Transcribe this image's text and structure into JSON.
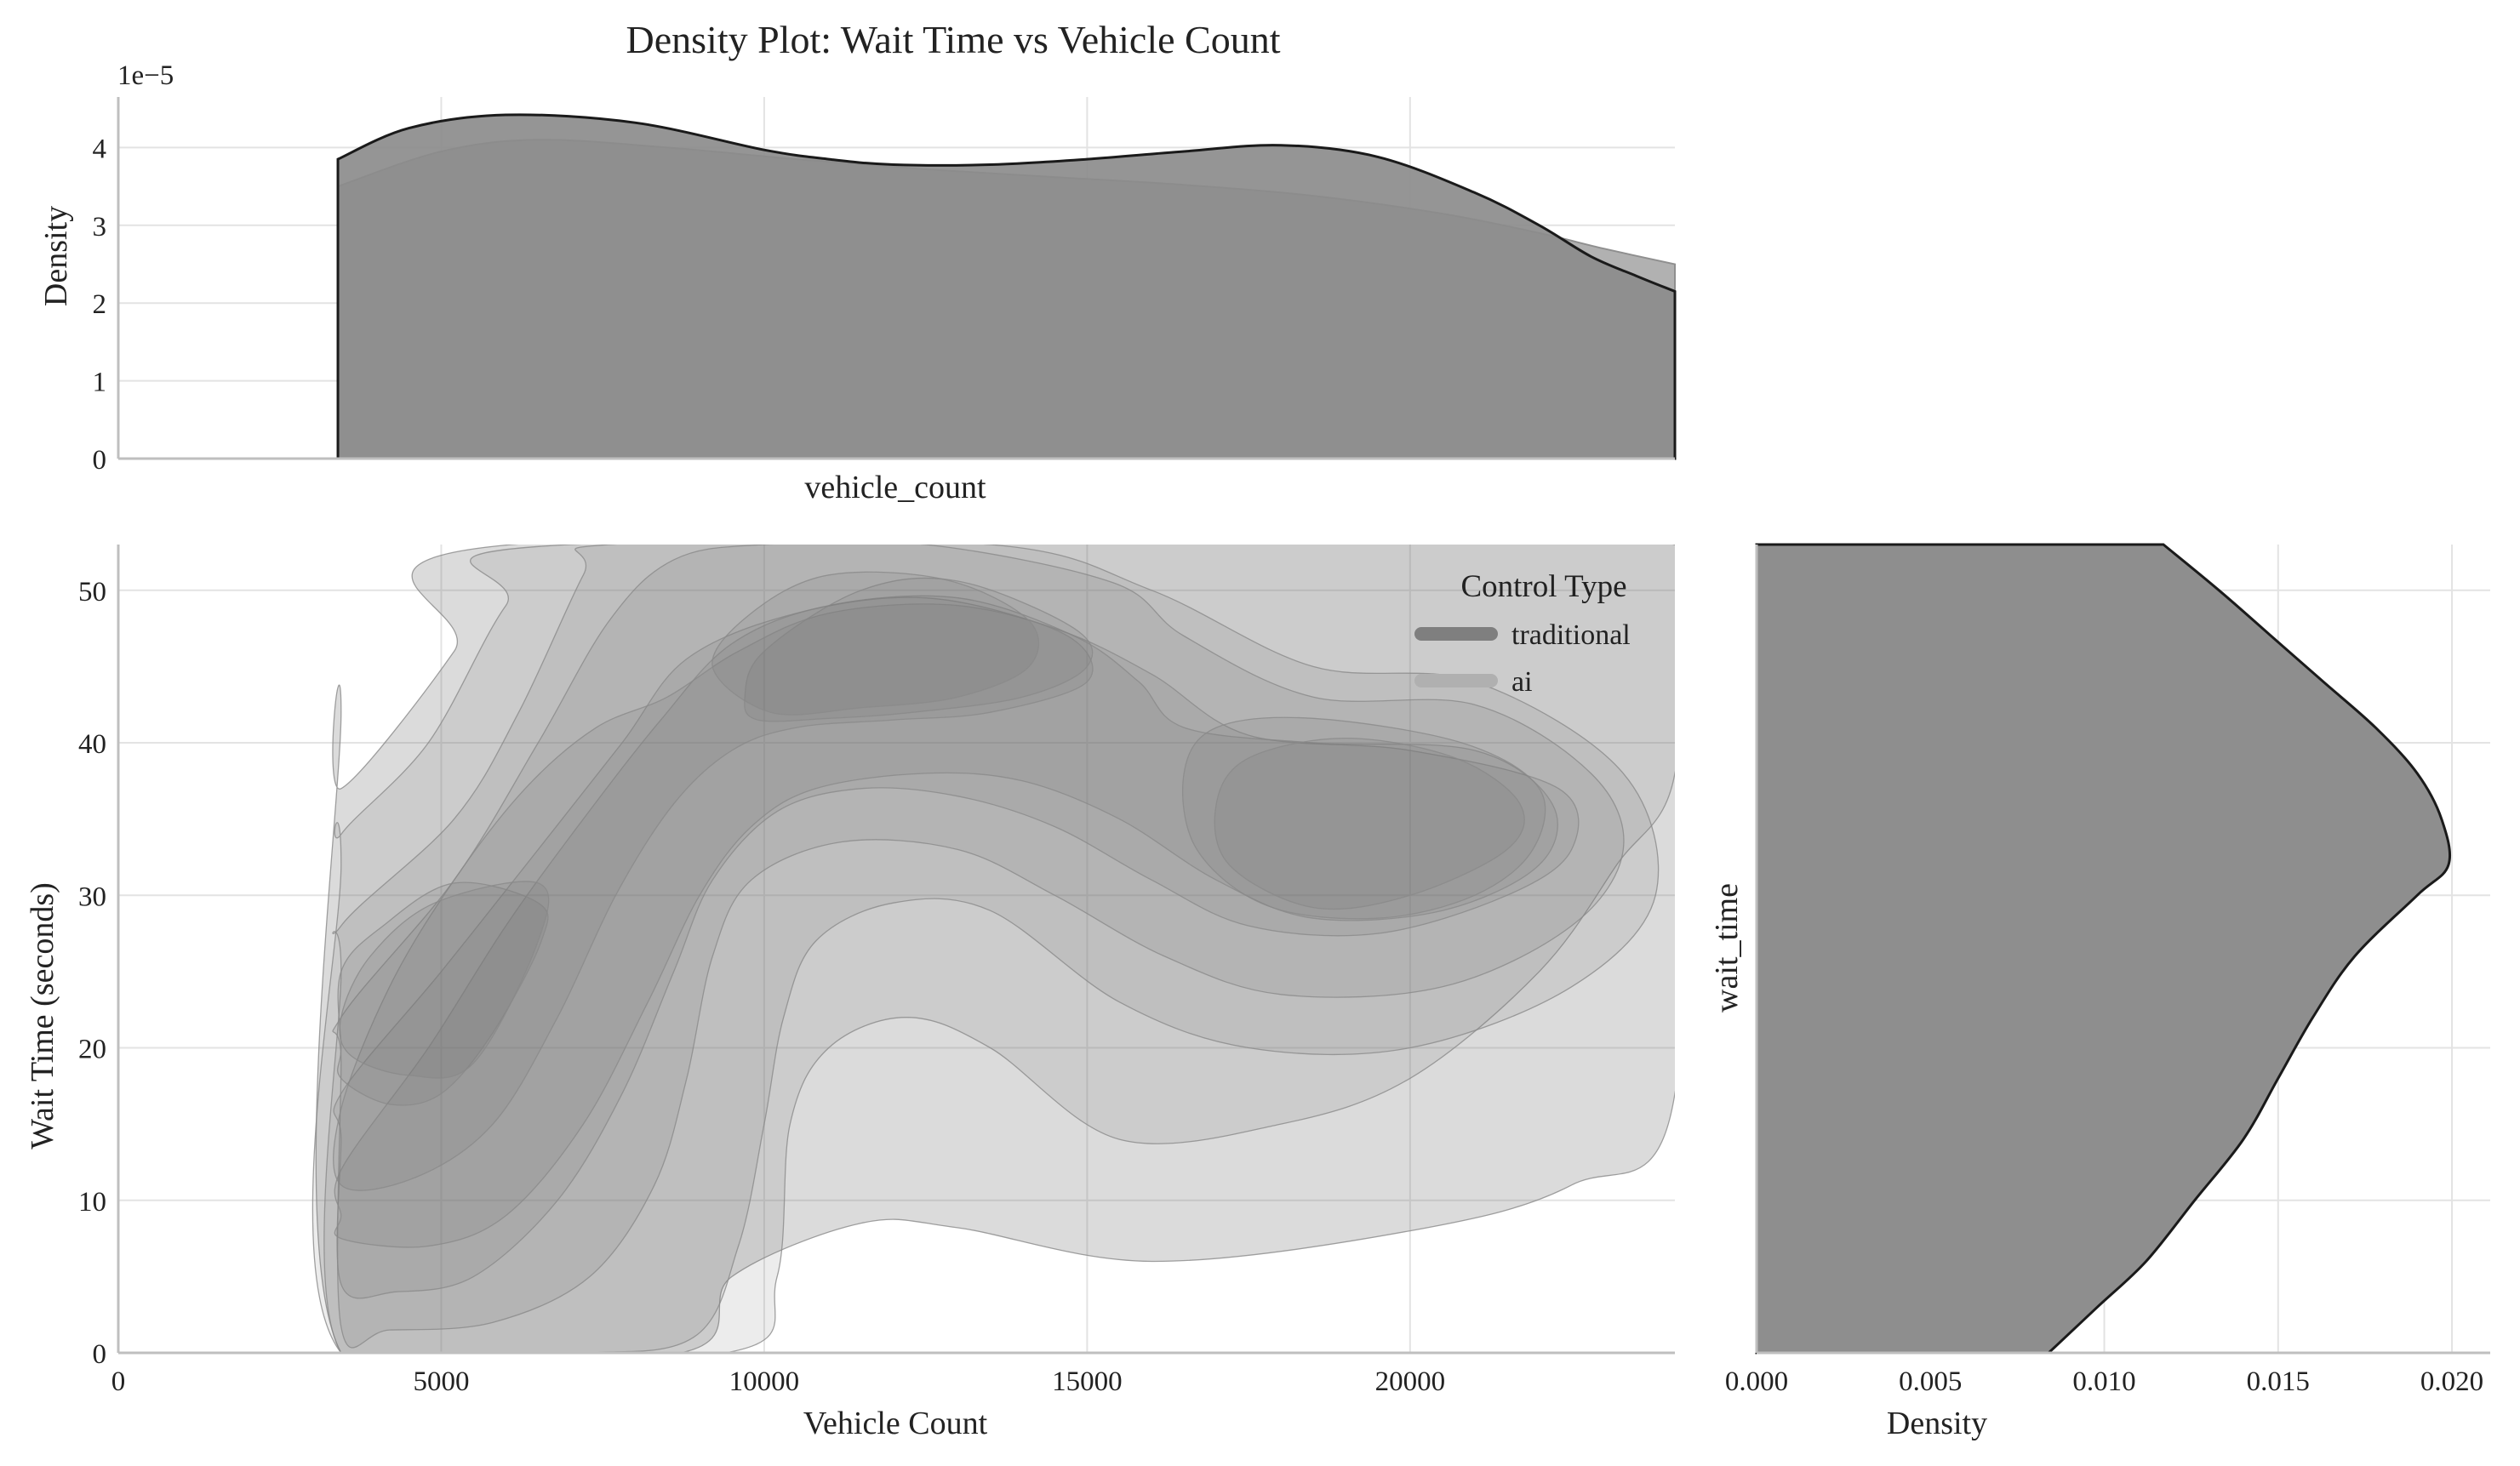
{
  "chart_data": {
    "type": "density",
    "title": "Density Plot: Wait Time vs Vehicle Count",
    "joint": {
      "type": "kde2d",
      "xlabel": "Vehicle Count",
      "ylabel": "Wait Time (seconds)",
      "xlim": [
        0,
        24100
      ],
      "ylim": [
        0,
        53
      ],
      "xticks": [
        0,
        5000,
        10000,
        15000,
        20000
      ],
      "yticks": [
        0,
        10,
        20,
        30,
        40,
        50
      ],
      "contour_levels": [
        [
          [
            3450,
            42
          ],
          [
            3450,
            37
          ],
          [
            5200,
            46
          ],
          [
            6100,
            53
          ],
          [
            24100,
            53
          ],
          [
            24100,
            17
          ],
          [
            22500,
            11
          ],
          [
            20000,
            8
          ],
          [
            16000,
            6
          ],
          [
            13000,
            8.2
          ],
          [
            11500,
            8.5
          ],
          [
            9500,
            5
          ],
          [
            8700,
            0
          ],
          [
            3450,
            0
          ]
        ],
        [
          [
            3450,
            32
          ],
          [
            3450,
            34
          ],
          [
            4800,
            40
          ],
          [
            6000,
            49
          ],
          [
            7000,
            53
          ],
          [
            24100,
            53
          ],
          [
            24100,
            38
          ],
          [
            23200,
            32
          ],
          [
            22000,
            25
          ],
          [
            20000,
            18
          ],
          [
            18000,
            15
          ],
          [
            15500,
            14
          ],
          [
            13500,
            20
          ],
          [
            12200,
            22
          ],
          [
            11000,
            20
          ],
          [
            10400,
            15
          ],
          [
            10200,
            5
          ],
          [
            9400,
            0
          ],
          [
            3450,
            0
          ]
        ],
        [
          [
            3450,
            25
          ],
          [
            3450,
            28
          ],
          [
            5200,
            35
          ],
          [
            6200,
            42
          ],
          [
            7200,
            51
          ],
          [
            7600,
            53
          ],
          [
            13500,
            53
          ],
          [
            16000,
            50
          ],
          [
            18500,
            45
          ],
          [
            21000,
            44
          ],
          [
            23300,
            38
          ],
          [
            23800,
            30
          ],
          [
            22500,
            24
          ],
          [
            20000,
            20
          ],
          [
            17500,
            20
          ],
          [
            15500,
            23
          ],
          [
            13500,
            29
          ],
          [
            12000,
            29.5
          ],
          [
            10800,
            27
          ],
          [
            10300,
            22
          ],
          [
            10000,
            15
          ],
          [
            9600,
            7
          ],
          [
            8900,
            1
          ],
          [
            7000,
            0
          ],
          [
            3450,
            0
          ]
        ],
        [
          [
            3450,
            19
          ],
          [
            3450,
            22
          ],
          [
            5200,
            31
          ],
          [
            6500,
            40
          ],
          [
            7600,
            48
          ],
          [
            8600,
            52
          ],
          [
            10000,
            53
          ],
          [
            12500,
            53
          ],
          [
            15400,
            50.5
          ],
          [
            16500,
            47
          ],
          [
            18500,
            43
          ],
          [
            21000,
            42.5
          ],
          [
            22800,
            38
          ],
          [
            23300,
            33
          ],
          [
            22500,
            28
          ],
          [
            20500,
            24
          ],
          [
            18000,
            23.5
          ],
          [
            16200,
            26
          ],
          [
            14500,
            30
          ],
          [
            13000,
            33
          ],
          [
            11200,
            33.5
          ],
          [
            9800,
            31
          ],
          [
            9200,
            26
          ],
          [
            8800,
            18
          ],
          [
            8300,
            11
          ],
          [
            7300,
            5
          ],
          [
            5800,
            2
          ],
          [
            4200,
            1.5
          ],
          [
            3450,
            1.7
          ]
        ],
        [
          [
            3450,
            14
          ],
          [
            3450,
            17
          ],
          [
            5000,
            25
          ],
          [
            6500,
            33
          ],
          [
            7800,
            40
          ],
          [
            8800,
            45.5
          ],
          [
            10500,
            48.5
          ],
          [
            12500,
            49.5
          ],
          [
            14500,
            47.5
          ],
          [
            16000,
            44.5
          ],
          [
            17500,
            40.5
          ],
          [
            20000,
            39.5
          ],
          [
            22300,
            37
          ],
          [
            22500,
            33
          ],
          [
            21500,
            30
          ],
          [
            19500,
            27.5
          ],
          [
            17500,
            28
          ],
          [
            16000,
            31
          ],
          [
            14500,
            34.5
          ],
          [
            13000,
            36.5
          ],
          [
            11500,
            37
          ],
          [
            10200,
            35.5
          ],
          [
            9200,
            31
          ],
          [
            8600,
            25
          ],
          [
            7800,
            17
          ],
          [
            6800,
            10
          ],
          [
            5500,
            5
          ],
          [
            4300,
            4
          ],
          [
            3450,
            4.5
          ]
        ],
        [
          [
            3450,
            9
          ],
          [
            3450,
            12
          ],
          [
            4800,
            20
          ],
          [
            6000,
            28
          ],
          [
            7200,
            35
          ],
          [
            8400,
            41.5
          ],
          [
            9500,
            46.5
          ],
          [
            11000,
            49
          ],
          [
            13000,
            49.5
          ],
          [
            14800,
            47
          ],
          [
            15800,
            44
          ],
          [
            16500,
            41
          ],
          [
            18500,
            40
          ],
          [
            21000,
            39.5
          ],
          [
            22200,
            36
          ],
          [
            22000,
            32
          ],
          [
            20500,
            29
          ],
          [
            18500,
            28.5
          ],
          [
            17000,
            31
          ],
          [
            15500,
            35
          ],
          [
            14000,
            37.5
          ],
          [
            12500,
            38
          ],
          [
            10800,
            37
          ],
          [
            9800,
            34.5
          ],
          [
            9000,
            30
          ],
          [
            8200,
            23
          ],
          [
            7200,
            15
          ],
          [
            6000,
            9
          ],
          [
            4800,
            7
          ],
          [
            3450,
            7.5
          ]
        ],
        [
          [
            3450,
            16
          ],
          [
            4200,
            24
          ],
          [
            5200,
            31
          ],
          [
            6300,
            37
          ],
          [
            7400,
            41
          ],
          [
            8500,
            43
          ],
          [
            9600,
            46
          ],
          [
            11000,
            48.5
          ],
          [
            13000,
            49
          ],
          [
            14700,
            47
          ],
          [
            15000,
            44
          ],
          [
            13500,
            42
          ],
          [
            12000,
            41.5
          ],
          [
            10500,
            41
          ],
          [
            9500,
            39.5
          ],
          [
            8600,
            36
          ],
          [
            7700,
            30
          ],
          [
            6800,
            22
          ],
          [
            5800,
            15
          ],
          [
            4600,
            11.5
          ],
          [
            3450,
            11
          ]
        ],
        [
          [
            3450,
            20
          ],
          [
            3450,
            25
          ],
          [
            4100,
            28
          ],
          [
            5200,
            30.8
          ],
          [
            6500,
            29.5
          ],
          [
            6550,
            27
          ],
          [
            5800,
            21
          ],
          [
            5000,
            17
          ],
          [
            4200,
            16.3
          ],
          [
            3450,
            18
          ]
        ],
        [
          [
            9700,
            43
          ],
          [
            10000,
            46
          ],
          [
            11500,
            50
          ],
          [
            13000,
            50.6
          ],
          [
            14800,
            47.5
          ],
          [
            15000,
            45
          ],
          [
            14000,
            43
          ],
          [
            12300,
            42
          ],
          [
            11000,
            41.6
          ],
          [
            9900,
            41.5
          ]
        ],
        [
          [
            16500,
            38
          ],
          [
            17000,
            41
          ],
          [
            18500,
            41.6
          ],
          [
            20800,
            40
          ],
          [
            22000,
            37
          ],
          [
            21900,
            33
          ],
          [
            21000,
            30
          ],
          [
            19500,
            28.5
          ],
          [
            17800,
            29.3
          ],
          [
            16700,
            33
          ]
        ],
        [
          [
            3450,
            22
          ],
          [
            3900,
            26
          ],
          [
            4900,
            29.5
          ],
          [
            6500,
            30.8
          ],
          [
            6500,
            27
          ],
          [
            5500,
            19
          ],
          [
            4500,
            18.2
          ],
          [
            3600,
            19.5
          ]
        ],
        [
          [
            9200,
            45
          ],
          [
            9800,
            48.5
          ],
          [
            11000,
            51
          ],
          [
            12800,
            50.7
          ],
          [
            14100,
            48
          ],
          [
            14100,
            45
          ],
          [
            13000,
            43
          ],
          [
            11500,
            42.3
          ],
          [
            10100,
            42
          ]
        ],
        [
          [
            17000,
            36
          ],
          [
            17500,
            39
          ],
          [
            19000,
            40.3
          ],
          [
            20700,
            39
          ],
          [
            21700,
            36
          ],
          [
            21500,
            33
          ],
          [
            20000,
            30
          ],
          [
            18500,
            29.2
          ],
          [
            17200,
            32
          ]
        ]
      ]
    },
    "top_marginal": {
      "type": "kde",
      "xlabel": "vehicle_count",
      "ylabel": "Density",
      "scale_label": "1e−5",
      "ylim": [
        0,
        4.65
      ],
      "yticks": [
        0,
        1,
        2,
        3,
        4
      ],
      "series": [
        {
          "x": [
            3400,
            4500,
            6000,
            8000,
            10000,
            11000,
            12000,
            13500,
            15000,
            16500,
            18000,
            19500,
            21000,
            22000,
            22800,
            23500,
            24100
          ],
          "y": [
            3.85,
            4.25,
            4.42,
            4.32,
            3.97,
            3.85,
            3.78,
            3.78,
            3.85,
            3.95,
            4.03,
            3.88,
            3.42,
            3.0,
            2.6,
            2.35,
            2.15
          ]
        },
        {
          "x": [
            3400,
            5000,
            6500,
            8500,
            10500,
            12500,
            14500,
            16500,
            18500,
            20500,
            22000,
            23000,
            24100
          ],
          "y": [
            3.5,
            3.95,
            4.1,
            4.0,
            3.85,
            3.72,
            3.62,
            3.52,
            3.38,
            3.15,
            2.9,
            2.7,
            2.5
          ]
        }
      ]
    },
    "right_marginal": {
      "type": "kde",
      "xlabel": "Density",
      "ylabel": "wait_time",
      "xlim": [
        0,
        0.0211
      ],
      "xticks": [
        "0.000",
        "0.005",
        "0.010",
        "0.015",
        "0.020"
      ],
      "series": [
        {
          "y": [
            0,
            3,
            6,
            10,
            14,
            18,
            22,
            26,
            30,
            32,
            35,
            38,
            41,
            44,
            47,
            50,
            53
          ],
          "x": [
            0.0084,
            0.0098,
            0.0112,
            0.0126,
            0.014,
            0.015,
            0.016,
            0.0172,
            0.019,
            0.0199,
            0.0197,
            0.019,
            0.0178,
            0.0163,
            0.0148,
            0.0133,
            0.0117
          ]
        }
      ]
    },
    "legend": {
      "title": "Control Type",
      "placement": "top-right",
      "entries": [
        {
          "label": "traditional",
          "color": "#7f7f7f"
        },
        {
          "label": "ai",
          "color": "#b0b0b0"
        }
      ]
    },
    "grid": true
  },
  "colors": {
    "fill_main": "#8c8c8c",
    "fill_ai": "#a8a8a8",
    "contour_fill": "#6e6e6e",
    "contour_line": "#8a8a8a",
    "outline": "#1a1a1a"
  }
}
